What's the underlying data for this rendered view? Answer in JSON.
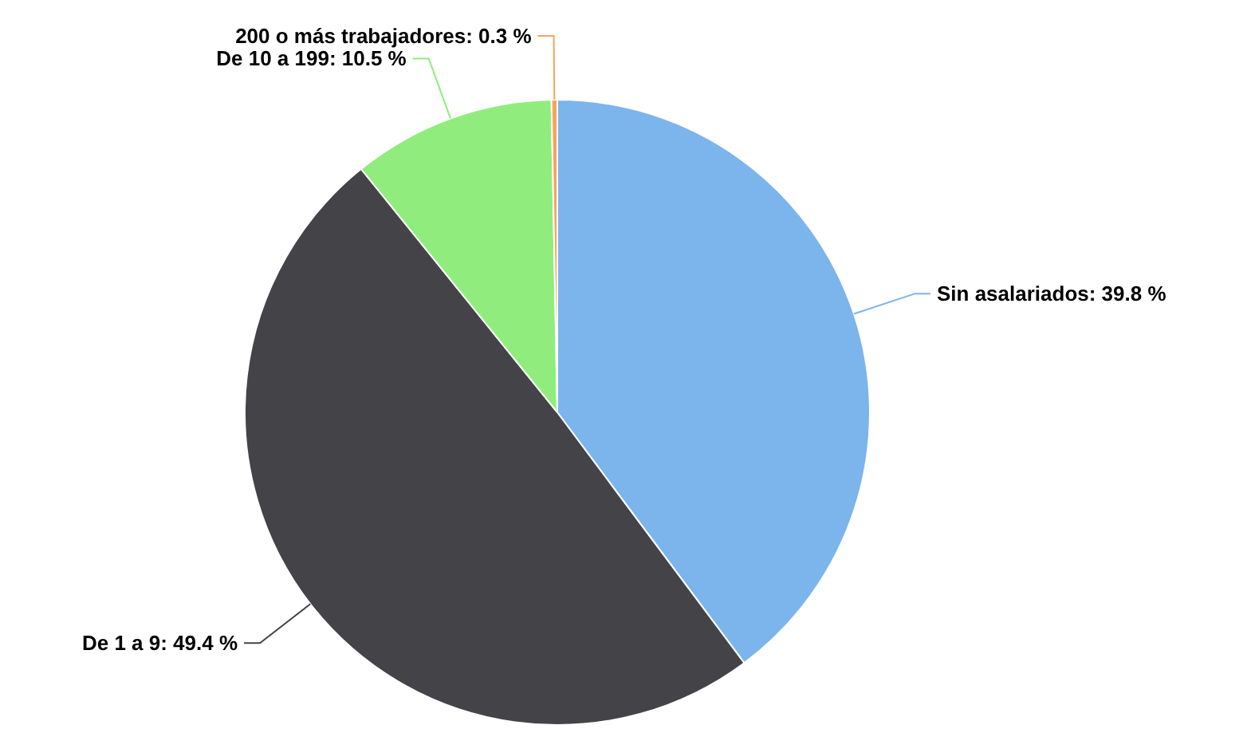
{
  "chart_data": {
    "type": "pie",
    "categories": [
      "Sin asalariados",
      "De 1 a 9",
      "De 10 a 199",
      "200 o más trabajadores"
    ],
    "values": [
      39.8,
      49.4,
      10.5,
      0.3
    ],
    "colors": [
      "#7cb5ec",
      "#434348",
      "#90ed7d",
      "#f7a35c"
    ],
    "value_labels": [
      "39.8 %",
      "49.4 %",
      "10.5 %",
      "0.3 %"
    ]
  }
}
